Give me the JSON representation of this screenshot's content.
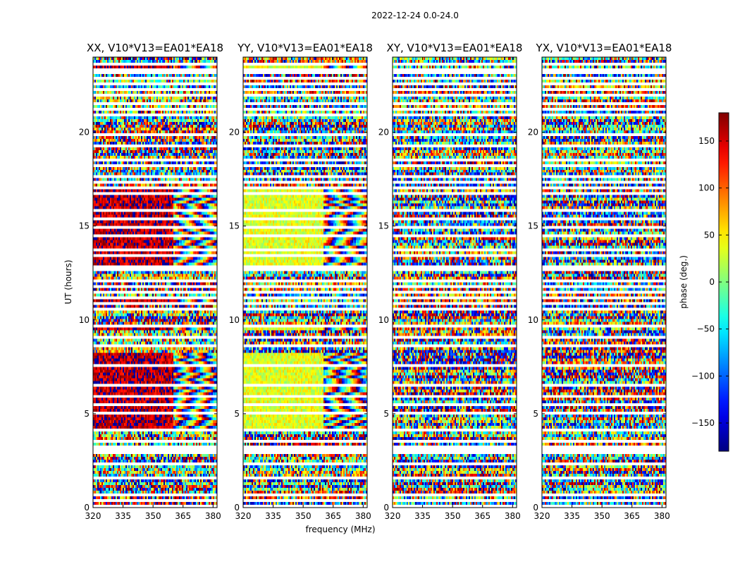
{
  "figure": {
    "suptitle": "2022-12-24 0.0-24.0"
  },
  "chart_data": {
    "type": "heatmap",
    "xlabel": "frequency (MHz)",
    "ylabel": "UT (hours)",
    "xlim": [
      320,
      382
    ],
    "ylim": [
      0,
      24
    ],
    "xticks": [
      320,
      335,
      350,
      365,
      380
    ],
    "yticks": [
      0,
      5,
      10,
      15,
      20
    ],
    "colorbar": {
      "label": "phase (deg.)",
      "range": [
        -180,
        180
      ],
      "ticks": [
        -150,
        -100,
        -50,
        0,
        50,
        100,
        150
      ],
      "ticks_display": [
        "−150",
        "−100",
        "−50",
        "0",
        "50",
        "100",
        "150"
      ],
      "colormap": "jet"
    },
    "flagged_rows_ut": [
      0.1,
      0.35,
      0.62,
      1.05,
      1.55,
      1.8,
      2.3,
      2.7,
      2.95,
      3.1,
      3.25,
      3.5,
      4.08,
      4.2,
      4.5,
      5.0,
      5.5,
      5.95,
      6.5,
      7.05,
      7.55,
      8.1,
      8.25,
      8.65,
      9.1,
      9.45,
      9.7,
      9.9,
      10.2,
      10.55,
      10.85,
      11.2,
      11.45,
      11.75,
      12.1,
      12.45,
      12.65,
      12.8,
      13.05,
      13.2,
      13.4,
      13.7,
      14.1,
      14.45,
      14.9,
      15.4,
      15.85,
      16.35,
      16.75,
      17.05,
      17.3,
      17.6,
      17.85,
      18.2,
      18.5,
      18.9,
      19.25,
      19.5,
      19.9,
      20.25,
      20.55,
      20.9,
      21.25,
      21.55,
      21.95,
      22.25,
      22.55,
      22.9,
      23.15,
      23.35,
      23.6
    ],
    "panels": [
      {
        "title": "XX, V10*V13=EA01*EA18",
        "baseline_phase_deg": 160,
        "phase_spread_deg": 40,
        "coherent_ut_ranges": [
          [
            4.0,
            8.2
          ],
          [
            11.0,
            11.3
          ],
          [
            12.7,
            13.3
          ],
          [
            13.4,
            17.0
          ],
          [
            9.4,
            9.8
          ],
          [
            23.1,
            23.5
          ]
        ],
        "coherent_freq_max_mhz": 360
      },
      {
        "title": "YY, V10*V13=EA01*EA18",
        "baseline_phase_deg": 35,
        "phase_spread_deg": 30,
        "coherent_ut_ranges": [
          [
            4.0,
            8.2
          ],
          [
            12.7,
            13.3
          ],
          [
            13.4,
            17.0
          ],
          [
            9.4,
            9.8
          ],
          [
            23.1,
            23.5
          ]
        ],
        "coherent_freq_max_mhz": 360
      },
      {
        "title": "XY, V10*V13=EA01*EA18",
        "baseline_phase_deg": null,
        "phase_spread_deg": 180,
        "coherent_ut_ranges": [],
        "coherent_freq_max_mhz": 0
      },
      {
        "title": "YX, V10*V13=EA01*EA18",
        "baseline_phase_deg": null,
        "phase_spread_deg": 180,
        "coherent_ut_ranges": [],
        "coherent_freq_max_mhz": 0
      }
    ]
  }
}
